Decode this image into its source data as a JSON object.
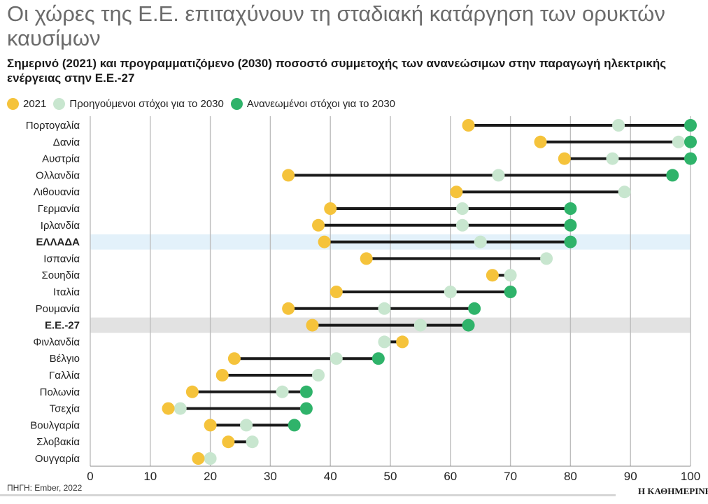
{
  "title": "Οι χώρες της Ε.Ε. επιταχύνουν τη σταδιακή κατάργηση των ορυκτών καυσίμων",
  "subtitle": "Σημερινό (2021) και προγραμματιζόμενο (2030) ποσοστό συμμετοχής των ανανεώσιμων στην παραγωγή ηλεκτρικής ενέργειας στην Ε.Ε.-27",
  "source": "ΠΗΓΗ: Ember, 2022",
  "brand": "Η ΚΑΘΗΜΕΡΙΝΗ",
  "colors": {
    "y2021": "#f5c33b",
    "previous": "#c8e6cf",
    "renewed": "#2fb36a",
    "connector": "#1a1a1a",
    "highlight_greece": "#e3f1fa",
    "highlight_eu": "#e2e2e2",
    "grid": "#bdbdbd"
  },
  "legend": {
    "y2021": "2021",
    "previous": "Προηγούμενοι στόχοι για το 2030",
    "renewed": "Ανανεωμένοι στόχοι για το 2030"
  },
  "chart_data": {
    "type": "dumbbell",
    "x_ticks": [
      0,
      10,
      20,
      30,
      40,
      50,
      60,
      70,
      80,
      90,
      100
    ],
    "xlim": [
      0,
      100
    ],
    "grid": true,
    "legend_position": "top-left",
    "rows": [
      {
        "label": "Πορτογαλία",
        "bold": false,
        "highlight": null,
        "v2021": 63,
        "prev": 88,
        "renewed": 100
      },
      {
        "label": "Δανία",
        "bold": false,
        "highlight": null,
        "v2021": 75,
        "prev": 98,
        "renewed": 100
      },
      {
        "label": "Αυστρία",
        "bold": false,
        "highlight": null,
        "v2021": 79,
        "prev": 87,
        "renewed": 100
      },
      {
        "label": "Ολλανδία",
        "bold": false,
        "highlight": null,
        "v2021": 33,
        "prev": 68,
        "renewed": 97
      },
      {
        "label": "Λιθουανία",
        "bold": false,
        "highlight": null,
        "v2021": 61,
        "prev": 89,
        "renewed": null
      },
      {
        "label": "Γερμανία",
        "bold": false,
        "highlight": null,
        "v2021": 40,
        "prev": 62,
        "renewed": 80
      },
      {
        "label": "Ιρλανδία",
        "bold": false,
        "highlight": null,
        "v2021": 38,
        "prev": 62,
        "renewed": 80
      },
      {
        "label": "ΕΛΛΑΔΑ",
        "bold": true,
        "highlight": "greece",
        "v2021": 39,
        "prev": 65,
        "renewed": 80
      },
      {
        "label": "Ισπανία",
        "bold": false,
        "highlight": null,
        "v2021": 46,
        "prev": 76,
        "renewed": null
      },
      {
        "label": "Σουηδία",
        "bold": false,
        "highlight": null,
        "v2021": 67,
        "prev": 70,
        "renewed": null
      },
      {
        "label": "Ιταλία",
        "bold": false,
        "highlight": null,
        "v2021": 41,
        "prev": 60,
        "renewed": 70
      },
      {
        "label": "Ρουμανία",
        "bold": false,
        "highlight": null,
        "v2021": 33,
        "prev": 49,
        "renewed": 64
      },
      {
        "label": "Ε.Ε.-27",
        "bold": true,
        "highlight": "eu",
        "v2021": 37,
        "prev": 55,
        "renewed": 63
      },
      {
        "label": "Φινλανδία",
        "bold": false,
        "highlight": null,
        "v2021": 52,
        "prev": 49,
        "renewed": null
      },
      {
        "label": "Βέλγιο",
        "bold": false,
        "highlight": null,
        "v2021": 24,
        "prev": 41,
        "renewed": 48
      },
      {
        "label": "Γαλλία",
        "bold": false,
        "highlight": null,
        "v2021": 22,
        "prev": 38,
        "renewed": null
      },
      {
        "label": "Πολωνία",
        "bold": false,
        "highlight": null,
        "v2021": 17,
        "prev": 32,
        "renewed": 36
      },
      {
        "label": "Τσεχία",
        "bold": false,
        "highlight": null,
        "v2021": 13,
        "prev": 15,
        "renewed": 36
      },
      {
        "label": "Βουλγαρία",
        "bold": false,
        "highlight": null,
        "v2021": 20,
        "prev": 26,
        "renewed": 34
      },
      {
        "label": "Σλοβακία",
        "bold": false,
        "highlight": null,
        "v2021": 23,
        "prev": 27,
        "renewed": null
      },
      {
        "label": "Ουγγαρία",
        "bold": false,
        "highlight": null,
        "v2021": 18,
        "prev": 20,
        "renewed": null
      }
    ]
  }
}
